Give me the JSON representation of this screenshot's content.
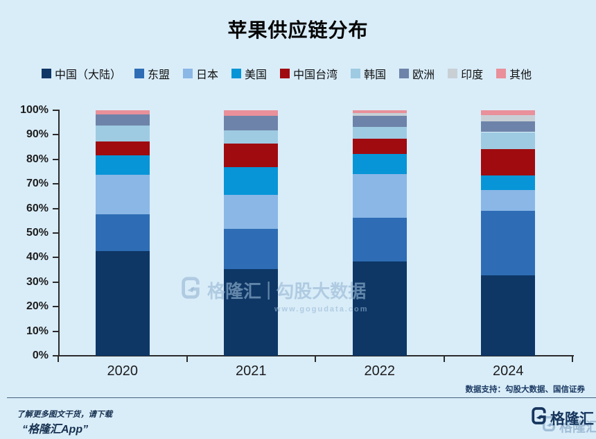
{
  "title": "苹果供应链分布",
  "chart_data": {
    "type": "bar",
    "subtype": "stacked-percent",
    "categories": [
      "2020",
      "2021",
      "2022",
      "2024"
    ],
    "series": [
      {
        "name": "中国（大陆）",
        "color": "#0e3766",
        "values": [
          42.7,
          35.3,
          38.3,
          32.8
        ]
      },
      {
        "name": "东盟",
        "color": "#2e6db5",
        "values": [
          15.0,
          16.4,
          18.0,
          26.1
        ]
      },
      {
        "name": "日本",
        "color": "#8ab7e6",
        "values": [
          16.0,
          13.9,
          17.6,
          8.6
        ]
      },
      {
        "name": "美国",
        "color": "#0795d7",
        "values": [
          8.0,
          11.2,
          8.2,
          5.9
        ]
      },
      {
        "name": "中国台湾",
        "color": "#a00b10",
        "values": [
          5.6,
          9.6,
          6.3,
          10.8
        ]
      },
      {
        "name": "韩国",
        "color": "#9ecbe2",
        "values": [
          6.4,
          5.5,
          4.7,
          6.9
        ]
      },
      {
        "name": "欧洲",
        "color": "#6e83a9",
        "values": [
          4.7,
          5.7,
          4.7,
          4.5
        ]
      },
      {
        "name": "印度",
        "color": "#c8d0d6",
        "values": [
          0,
          0,
          1.2,
          2.3
        ]
      },
      {
        "name": "其他",
        "color": "#e9909a",
        "values": [
          1.6,
          2.4,
          1.0,
          2.1
        ]
      }
    ],
    "title": "苹果供应链分布",
    "xlabel": "",
    "ylabel": "",
    "ylim": [
      0,
      100
    ],
    "y_ticks": [
      "0%",
      "10%",
      "20%",
      "30%",
      "40%",
      "50%",
      "60%",
      "70%",
      "80%",
      "90%",
      "100%"
    ],
    "grid": false,
    "legend_position": "top"
  },
  "watermark": {
    "brand": "格隆汇",
    "separator": "|",
    "product": "勾股大数据",
    "url": "www.gogudata.com"
  },
  "source_note": "数据支持：勾股大数据、国信证券",
  "footer": {
    "promo_line1": "了解更多图文干货，请下载",
    "promo_line2": "“格隆汇App”",
    "brand": "格隆汇"
  },
  "colors": {
    "background": "#d9edf9",
    "axis": "#2b2b2b",
    "footer_navy": "#16355d"
  }
}
